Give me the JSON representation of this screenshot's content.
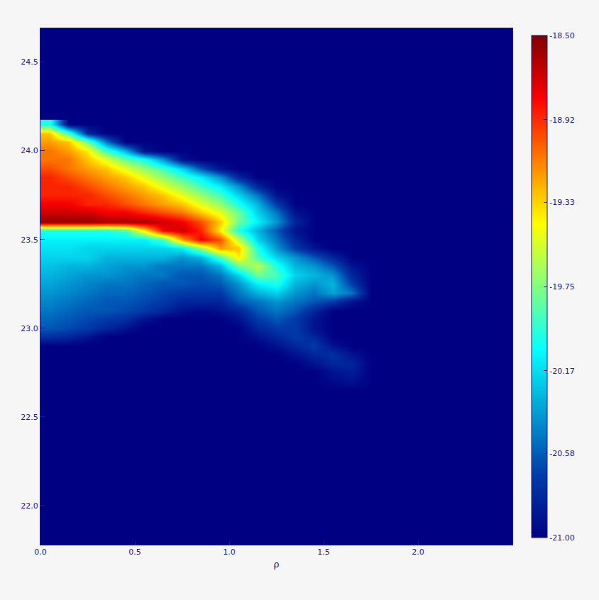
{
  "chart_data": {
    "type": "heatmap",
    "x_label": "ρ",
    "xlim": [
      0,
      2.5
    ],
    "ylim": [
      21.78,
      24.69
    ],
    "xticks": [
      {
        "value": 0,
        "label": "0.0"
      },
      0.5,
      {
        "value": 1,
        "label": "1.0"
      },
      1.5,
      {
        "value": 2,
        "label": "2.0"
      }
    ],
    "yticks": [
      {
        "value": 22,
        "label": "22.0"
      },
      22.5,
      {
        "value": 23,
        "label": "23.0"
      },
      23.5,
      {
        "value": 24,
        "label": "24.0"
      },
      24.5
    ],
    "grid": false,
    "colorbar": {
      "range": [
        -21,
        -18.5
      ],
      "ticks": [
        {
          "value": -18.5,
          "label": "-18.50"
        },
        {
          "value": -18.92,
          "label": "-18.92"
        },
        {
          "value": -19.33,
          "label": "-19.33"
        },
        {
          "value": -19.75,
          "label": "-19.75"
        },
        {
          "value": -20.17,
          "label": "-20.17"
        },
        {
          "value": -20.58,
          "label": "-20.58"
        },
        {
          "value": -21,
          "label": "-21.00"
        }
      ]
    },
    "x": [
      0.05,
      0.15,
      0.25,
      0.35,
      0.45,
      0.55,
      0.65,
      0.75,
      0.85,
      0.95,
      1.05,
      1.15,
      1.25,
      1.35,
      1.45,
      1.55,
      1.65,
      1.75
    ],
    "y": [
      22.65,
      22.7,
      22.75,
      22.8,
      22.85,
      22.9,
      22.95,
      23.0,
      23.05,
      23.1,
      23.15,
      23.2,
      23.25,
      23.3,
      23.35,
      23.4,
      23.45,
      23.5,
      23.55,
      23.6,
      23.65,
      23.7,
      23.75,
      23.8,
      23.85,
      23.9,
      23.95,
      24.0,
      24.05,
      24.1,
      24.15
    ],
    "z": [
      [
        -21,
        -21,
        -21,
        -21,
        -21,
        -21,
        -21,
        -21,
        -21,
        -21,
        -21,
        -21,
        -21,
        -21,
        -21,
        -21,
        -21,
        -21
      ],
      [
        -21,
        -21,
        -21,
        -21,
        -21,
        -21,
        -21,
        -21,
        -21,
        -21,
        -21,
        -21,
        -21,
        -21,
        -21,
        -20.95,
        -20.9,
        -21
      ],
      [
        -21,
        -21,
        -21,
        -21,
        -21,
        -21,
        -21,
        -21,
        -21,
        -21,
        -21,
        -21,
        -21,
        -21,
        -21,
        -20.9,
        -20.85,
        -21
      ],
      [
        -21,
        -21,
        -21,
        -21,
        -21,
        -21,
        -21,
        -21,
        -21,
        -21,
        -21,
        -21,
        -21,
        -21,
        -20.9,
        -20.8,
        -20.8,
        -21
      ],
      [
        -21,
        -21,
        -21,
        -21,
        -21,
        -21,
        -21,
        -21,
        -21,
        -21,
        -21,
        -21,
        -21,
        -20.9,
        -20.8,
        -20.75,
        -20.9,
        -21
      ],
      [
        -21,
        -21,
        -21,
        -21,
        -21,
        -21,
        -21,
        -21,
        -21,
        -21,
        -21,
        -21,
        -20.9,
        -20.8,
        -20.7,
        -20.9,
        -21,
        -21
      ],
      [
        -20.75,
        -20.8,
        -20.9,
        -21,
        -21,
        -21,
        -21,
        -21,
        -21,
        -21,
        -21,
        -20.9,
        -20.8,
        -20.7,
        -20.8,
        -21,
        -21,
        -21
      ],
      [
        -20.6,
        -20.65,
        -20.7,
        -20.8,
        -20.9,
        -21,
        -21,
        -21,
        -21,
        -21,
        -21,
        -20.8,
        -20.7,
        -20.7,
        -20.9,
        -21,
        -21,
        -21
      ],
      [
        -20.55,
        -20.6,
        -20.65,
        -20.7,
        -20.75,
        -20.9,
        -21,
        -21,
        -21,
        -21,
        -20.9,
        -20.7,
        -20.6,
        -20.7,
        -20.9,
        -21,
        -21,
        -21
      ],
      [
        -20.5,
        -20.55,
        -20.6,
        -20.6,
        -20.65,
        -20.7,
        -20.8,
        -20.9,
        -20.95,
        -20.9,
        -20.8,
        -20.6,
        -20.5,
        -20.6,
        -20.8,
        -21,
        -21,
        -21
      ],
      [
        -20.45,
        -20.5,
        -20.55,
        -20.6,
        -20.6,
        -20.65,
        -20.7,
        -20.8,
        -20.8,
        -20.8,
        -20.6,
        -20.5,
        -20.4,
        -20.5,
        -20.6,
        -20.7,
        -20.9,
        -21
      ],
      [
        -20.4,
        -20.45,
        -20.5,
        -20.55,
        -20.55,
        -20.6,
        -20.65,
        -20.7,
        -20.7,
        -20.7,
        -20.5,
        -20.3,
        -20.2,
        -20.4,
        -20.5,
        -20.35,
        -20.5,
        -21
      ],
      [
        -20.35,
        -20.4,
        -20.45,
        -20.5,
        -20.5,
        -20.55,
        -20.6,
        -20.6,
        -20.65,
        -20.6,
        -20.4,
        -20.1,
        -20.0,
        -20.3,
        -20.4,
        -20.3,
        -20.7,
        -21
      ],
      [
        -20.3,
        -20.35,
        -20.4,
        -20.4,
        -20.45,
        -20.5,
        -20.5,
        -20.6,
        -20.6,
        -20.5,
        -20.2,
        -19.8,
        -19.9,
        -20.2,
        -20.3,
        -20.4,
        -20.8,
        -21
      ],
      [
        -20.25,
        -20.3,
        -20.3,
        -20.35,
        -20.4,
        -20.4,
        -20.5,
        -20.5,
        -20.5,
        -20.3,
        -19.8,
        -19.6,
        -20.0,
        -20.3,
        -20.4,
        -20.6,
        -20.9,
        -21
      ],
      [
        -20.2,
        -20.2,
        -20.2,
        -20.3,
        -20.3,
        -20.3,
        -20.3,
        -20.4,
        -20.3,
        -19.9,
        -19.4,
        -19.9,
        -20.2,
        -20.4,
        -20.6,
        -20.8,
        -21,
        -21
      ],
      [
        -20.15,
        -20.15,
        -20.2,
        -20.2,
        -20.2,
        -20.2,
        -20.2,
        -20.1,
        -19.7,
        -19.2,
        -19.3,
        -20.0,
        -20.4,
        -20.7,
        -20.9,
        -21,
        -21,
        -21
      ],
      [
        -20.1,
        -20.1,
        -20.1,
        -20.1,
        -20.1,
        -20.1,
        -19.9,
        -19.2,
        -18.8,
        -19.0,
        -19.6,
        -20.2,
        -20.5,
        -20.8,
        -21,
        -21,
        -21,
        -21
      ],
      [
        -20.0,
        -20.0,
        -20.0,
        -20.0,
        -19.9,
        -19.4,
        -18.8,
        -18.7,
        -18.9,
        -19.4,
        -20.0,
        -20.3,
        -20.6,
        -20.9,
        -21,
        -21,
        -21,
        -21
      ],
      [
        -18.55,
        -18.55,
        -18.55,
        -18.6,
        -18.6,
        -18.6,
        -18.7,
        -18.8,
        -19.0,
        -19.3,
        -19.8,
        -20.1,
        -20.4,
        -20.8,
        -21,
        -21,
        -21,
        -21
      ],
      [
        -18.7,
        -18.7,
        -18.7,
        -18.8,
        -18.8,
        -18.9,
        -19.0,
        -19.1,
        -19.3,
        -19.5,
        -19.8,
        -20.2,
        -20.5,
        -20.9,
        -21,
        -21,
        -21,
        -21
      ],
      [
        -18.8,
        -18.8,
        -18.9,
        -18.9,
        -19.0,
        -19.1,
        -19.2,
        -19.3,
        -19.5,
        -19.7,
        -20.0,
        -20.3,
        -20.7,
        -21,
        -21,
        -21,
        -21,
        -21
      ],
      [
        -18.9,
        -18.9,
        -18.9,
        -19.0,
        -19.1,
        -19.2,
        -19.3,
        -19.5,
        -19.7,
        -19.9,
        -20.2,
        -20.5,
        -20.9,
        -21,
        -21,
        -21,
        -21,
        -21
      ],
      [
        -18.9,
        -18.9,
        -19.0,
        -19.1,
        -19.2,
        -19.3,
        -19.5,
        -19.7,
        -19.9,
        -20.1,
        -20.4,
        -20.8,
        -21,
        -21,
        -21,
        -21,
        -21,
        -21
      ],
      [
        -18.9,
        -19.0,
        -19.1,
        -19.2,
        -19.3,
        -19.5,
        -19.7,
        -19.9,
        -20.1,
        -20.4,
        -20.8,
        -21,
        -21,
        -21,
        -21,
        -21,
        -21,
        -21
      ],
      [
        -19.0,
        -19.1,
        -19.2,
        -19.3,
        -19.5,
        -19.7,
        -19.9,
        -20.2,
        -20.6,
        -20.9,
        -21,
        -21,
        -21,
        -21,
        -21,
        -21,
        -21,
        -21
      ],
      [
        -19.1,
        -19.1,
        -19.3,
        -19.5,
        -19.8,
        -20.0,
        -20.4,
        -20.9,
        -21,
        -21,
        -21,
        -21,
        -21,
        -21,
        -21,
        -21,
        -21,
        -21
      ],
      [
        -19.1,
        -19.2,
        -19.4,
        -19.9,
        -20.3,
        -20.9,
        -21,
        -21,
        -21,
        -21,
        -21,
        -21,
        -21,
        -21,
        -21,
        -21,
        -21,
        -21
      ],
      [
        -19.2,
        -19.3,
        -19.8,
        -20.5,
        -21,
        -21,
        -21,
        -21,
        -21,
        -21,
        -21,
        -21,
        -21,
        -21,
        -21,
        -21,
        -21,
        -21
      ],
      [
        -19.3,
        -19.9,
        -20.8,
        -21,
        -21,
        -21,
        -21,
        -21,
        -21,
        -21,
        -21,
        -21,
        -21,
        -21,
        -21,
        -21,
        -21,
        -21
      ],
      [
        -20.0,
        -21,
        -21,
        -21,
        -21,
        -21,
        -21,
        -21,
        -21,
        -21,
        -21,
        -21,
        -21,
        -21,
        -21,
        -21,
        -21,
        -21
      ]
    ]
  }
}
